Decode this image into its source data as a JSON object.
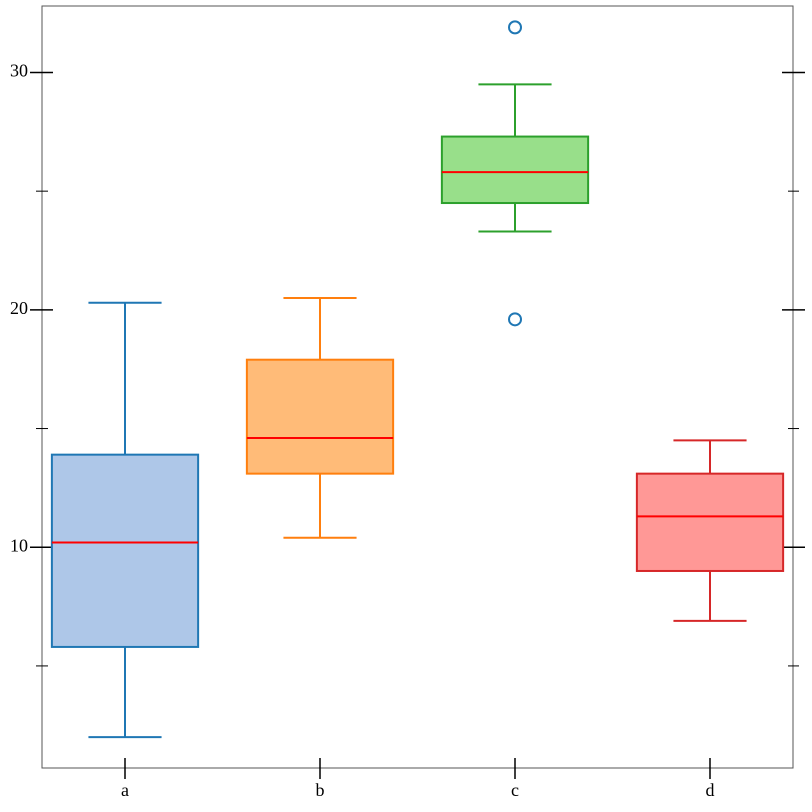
{
  "chart_data": {
    "type": "box",
    "categories": [
      "a",
      "b",
      "c",
      "d"
    ],
    "boxes": [
      {
        "color": "#1f77b4",
        "fill": "#aec7e8",
        "whislo": 2.0,
        "q1": 5.8,
        "med": 10.2,
        "q3": 13.9,
        "whishi": 20.3,
        "fliers": []
      },
      {
        "color": "#ff7f0e",
        "fill": "#ffbb78",
        "whislo": 10.4,
        "q1": 13.1,
        "med": 14.6,
        "q3": 17.9,
        "whishi": 20.5,
        "fliers": []
      },
      {
        "color": "#2ca02c",
        "fill": "#98df8a",
        "whislo": 23.3,
        "q1": 24.5,
        "med": 25.8,
        "q3": 27.3,
        "whishi": 29.5,
        "fliers": [
          31.9,
          19.6
        ]
      },
      {
        "color": "#d62728",
        "fill": "#ff9896",
        "whislo": 6.9,
        "q1": 9.0,
        "med": 11.3,
        "q3": 13.1,
        "whishi": 14.5,
        "fliers": []
      }
    ],
    "median_color": "#ff0000",
    "flier_color": "#1f77b4",
    "ylim": [
      0.7,
      32.8
    ],
    "yticks": [
      10,
      20,
      30
    ],
    "yminorticks": [
      5,
      15,
      25
    ],
    "grid": false
  }
}
